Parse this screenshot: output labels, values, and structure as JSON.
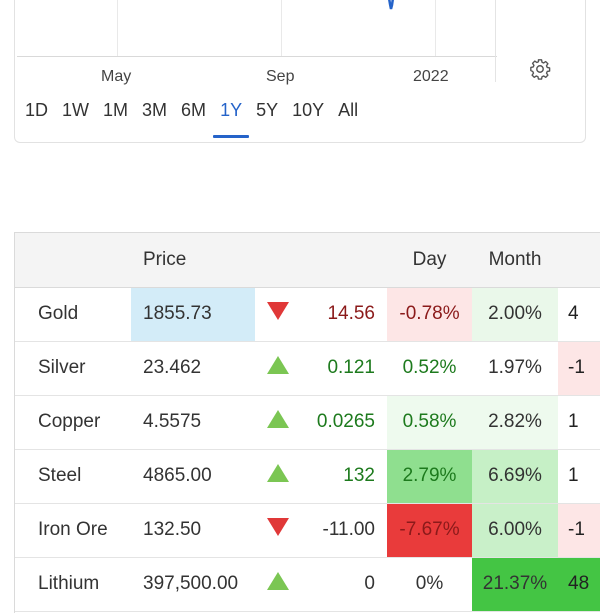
{
  "chart": {
    "x_labels": [
      "May",
      "Sep",
      "2022"
    ],
    "line_color": "#2563c9",
    "settings_icon": "gear-icon"
  },
  "ranges": {
    "items": [
      "1D",
      "1W",
      "1M",
      "3M",
      "6M",
      "1Y",
      "5Y",
      "10Y",
      "All"
    ],
    "active": "1Y",
    "active_color": "#2563c9"
  },
  "table": {
    "headers": {
      "name": "",
      "price": "Price",
      "dir": "",
      "change": "",
      "day": "Day",
      "month": "Month",
      "ext": ""
    },
    "rows": [
      {
        "name": "Gold",
        "price": "1855.73",
        "direction": "down",
        "change": "14.56",
        "change_color": "#8b1a1a",
        "day": "-0.78%",
        "day_color": "#8b1a1a",
        "day_bg": "#fde6e6",
        "month": "2.00%",
        "month_color": "#333333",
        "month_bg": "#eaf8ea",
        "ext": "4",
        "ext_bg": "#ffffff",
        "price_bg": "#d3ecf8"
      },
      {
        "name": "Silver",
        "price": "23.462",
        "direction": "up",
        "change": "0.121",
        "change_color": "#1d7a1d",
        "day": "0.52%",
        "day_color": "#1d7a1d",
        "day_bg": "#ffffff",
        "month": "1.97%",
        "month_color": "#333333",
        "month_bg": "#ffffff",
        "ext": "-1",
        "ext_bg": "#fde6e6",
        "price_bg": "#ffffff"
      },
      {
        "name": "Copper",
        "price": "4.5575",
        "direction": "up",
        "change": "0.0265",
        "change_color": "#1d7a1d",
        "day": "0.58%",
        "day_color": "#1d7a1d",
        "day_bg": "#eefaee",
        "month": "2.82%",
        "month_color": "#333333",
        "month_bg": "#eefaee",
        "ext": "1",
        "ext_bg": "#ffffff",
        "price_bg": "#ffffff"
      },
      {
        "name": "Steel",
        "price": "4865.00",
        "direction": "up",
        "change": "132",
        "change_color": "#1d7a1d",
        "day": "2.79%",
        "day_color": "#1d7a1d",
        "day_bg": "#8fdf8f",
        "month": "6.69%",
        "month_color": "#333333",
        "month_bg": "#c6f0c6",
        "ext": "1",
        "ext_bg": "#ffffff",
        "price_bg": "#ffffff"
      },
      {
        "name": "Iron Ore",
        "price": "132.50",
        "direction": "down",
        "change": "-11.00",
        "change_color": "#333333",
        "day": "-7.67%",
        "day_color": "#8b1a1a",
        "day_bg": "#e93b3b",
        "month": "6.00%",
        "month_color": "#333333",
        "month_bg": "#c9f0c9",
        "ext": "-1",
        "ext_bg": "#fde6e6",
        "price_bg": "#ffffff"
      },
      {
        "name": "Lithium",
        "price": "397,500.00",
        "direction": "up",
        "change": "0",
        "change_color": "#333333",
        "day": "0%",
        "day_color": "#333333",
        "day_bg": "#ffffff",
        "month": "21.37%",
        "month_color": "#333333",
        "month_bg": "#44c544",
        "ext": "48",
        "ext_bg": "#44c544",
        "price_bg": "#ffffff"
      }
    ]
  }
}
